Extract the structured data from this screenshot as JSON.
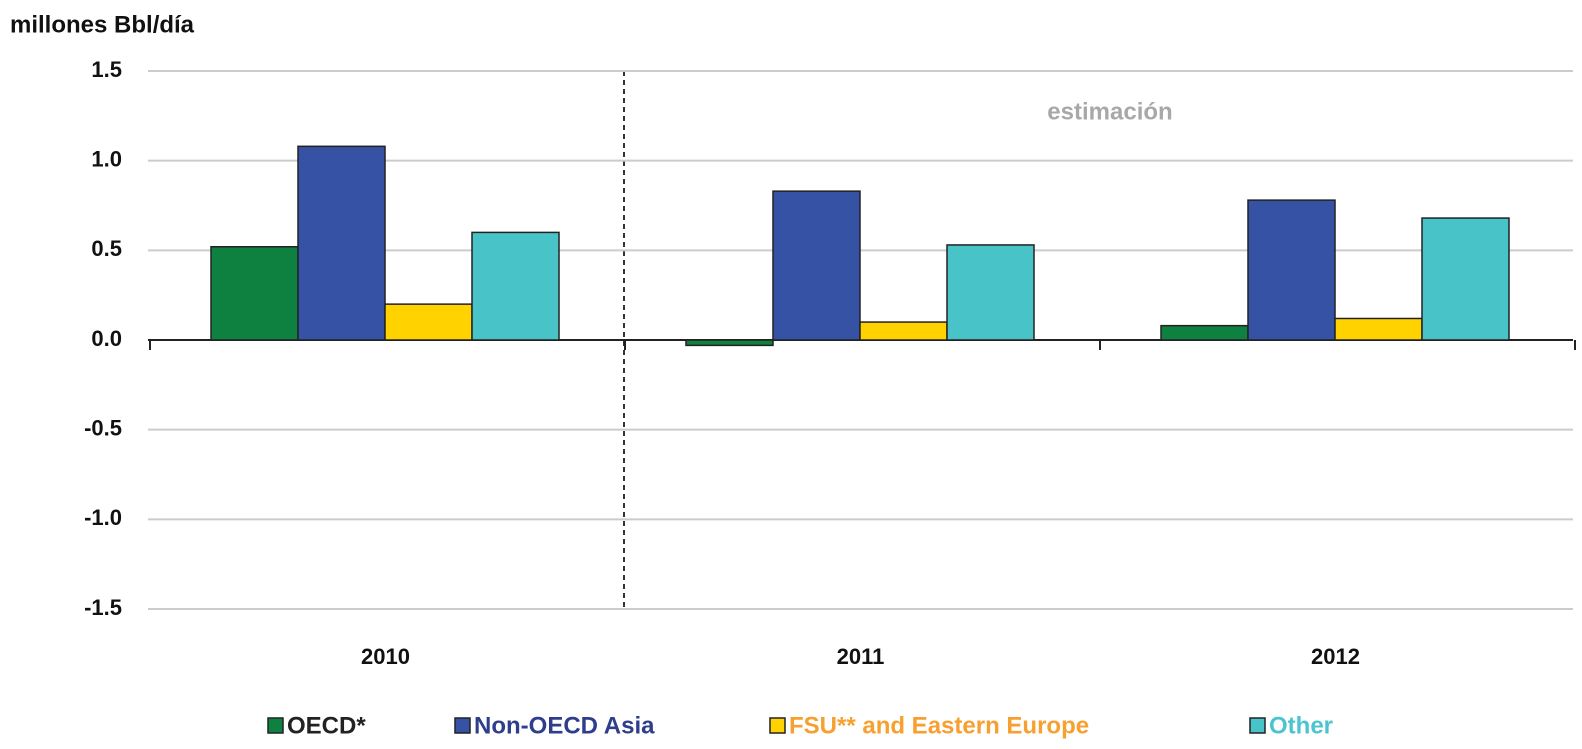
{
  "chart_data": {
    "type": "bar",
    "y_label": "millones Bbl/día",
    "annotation": "estimación",
    "categories": [
      "2010",
      "2011",
      "2012"
    ],
    "series": [
      {
        "name": "OECD*",
        "color": "#0e8040",
        "text_color": "#222222",
        "values": [
          0.52,
          -0.03,
          0.08
        ]
      },
      {
        "name": "Non-OECD Asia",
        "color": "#3652a4",
        "text_color": "#2e3e8c",
        "values": [
          1.08,
          0.83,
          0.78
        ]
      },
      {
        "name": "FSU** and Eastern Europe",
        "color": "#ffd200",
        "text_color": "#f7a030",
        "values": [
          0.2,
          0.1,
          0.12
        ]
      },
      {
        "name": "Other",
        "color": "#48c3c8",
        "text_color": "#4cc4d0",
        "values": [
          0.6,
          0.53,
          0.68
        ]
      }
    ],
    "ylim": [
      -1.5,
      1.5
    ],
    "yticks": [
      1.5,
      {
        "value": 1,
        "label": "1.0"
      },
      0.5,
      {
        "value": 0,
        "label": "0.0"
      },
      -0.5,
      {
        "value": -1,
        "label": "-1.0"
      },
      -1.5
    ],
    "grid": true,
    "legend": "bottom"
  }
}
